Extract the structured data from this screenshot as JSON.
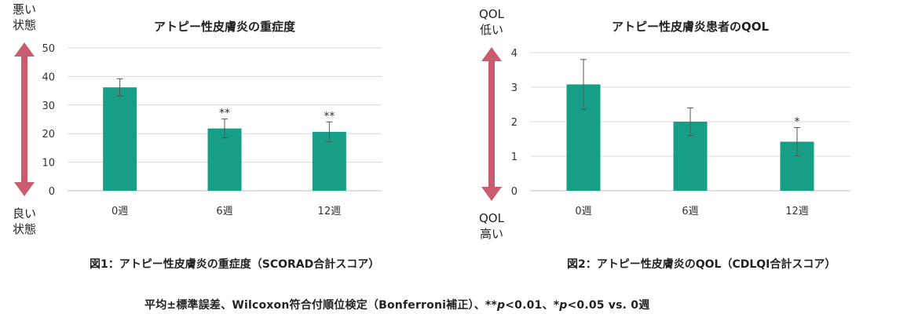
{
  "left_chart": {
    "top_label": "悪い\n状態",
    "bottom_label": "良い\n状態",
    "caption": "図1：アトピー性皮膚炎の重症度（SCORAD合計スコア）"
  },
  "right_chart": {
    "top_label": "QOL\n低い",
    "bottom_label": "QOL\n高い",
    "caption": "図2：アトピー性皮膚炎のQOL（CDLQI合計スコア）"
  },
  "footnote": {
    "part1": "平均±標準誤差、Wilcoxon符合付順位検定（Bonferroni補正）、**",
    "p1": "p",
    "part2": "<0.01、*",
    "p2": "p",
    "part3": "<0.05 vs. 0週"
  },
  "colors": {
    "bar": "#169E87",
    "arrow": "#C95D6F",
    "grid": "#D9D9D9",
    "axis": "#BFBFBF"
  },
  "chart_data": [
    {
      "type": "bar",
      "title": "アトピー性皮膚炎の重症度",
      "categories": [
        "0週",
        "6週",
        "12週"
      ],
      "values": [
        36.2,
        21.8,
        20.6
      ],
      "errors": [
        3.0,
        3.3,
        3.5
      ],
      "significance": [
        "",
        "**",
        "**"
      ],
      "ylim": [
        0,
        50
      ],
      "yticks": [
        0,
        10,
        20,
        30,
        40,
        50
      ],
      "grid": true
    },
    {
      "type": "bar",
      "title": "アトピー性皮膚炎患者のQOL",
      "categories": [
        "0週",
        "6週",
        "12週"
      ],
      "values": [
        3.08,
        2.0,
        1.42
      ],
      "errors": [
        0.72,
        0.4,
        0.41
      ],
      "significance": [
        "",
        "",
        "*"
      ],
      "ylim": [
        0,
        4
      ],
      "yticks": [
        0,
        1,
        2,
        3,
        4
      ],
      "grid": true
    }
  ]
}
